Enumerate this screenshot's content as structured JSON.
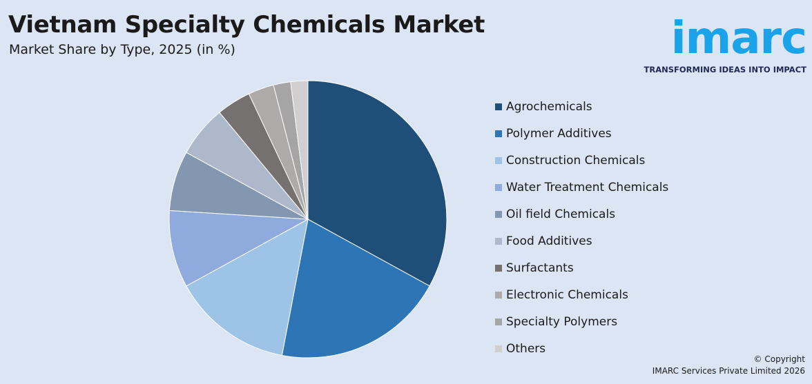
{
  "header": {
    "title": "Vietnam Specialty Chemicals Market",
    "subtitle": "Market Share by Type, 2025 (in %)"
  },
  "logo": {
    "wordmark": "imarc",
    "tagline": "TRANSFORMING IDEAS INTO IMPACT"
  },
  "chart_data": {
    "type": "pie",
    "title": "Vietnam Specialty Chemicals Market",
    "subtitle": "Market Share by Type, 2025 (in %)",
    "legend_position": "right",
    "categories": [
      "Agrochemicals",
      "Polymer Additives",
      "Construction Chemicals",
      "Water Treatment Chemicals",
      "Oil field Chemicals",
      "Food Additives",
      "Surfactants",
      "Electronic Chemicals",
      "Specialty Polymers",
      "Others"
    ],
    "values": [
      33,
      20,
      14,
      9,
      7,
      6,
      4,
      3,
      2,
      2
    ],
    "colors": [
      "#1f4e79",
      "#2e75b6",
      "#9dc3e6",
      "#8faadc",
      "#8497b0",
      "#adb9ca",
      "#767171",
      "#aeaaaa",
      "#a5a5a5",
      "#d0cece"
    ]
  },
  "footer": {
    "copyright_line1": "© Copyright",
    "copyright_line2": "IMARC Services Private Limited 2026"
  }
}
